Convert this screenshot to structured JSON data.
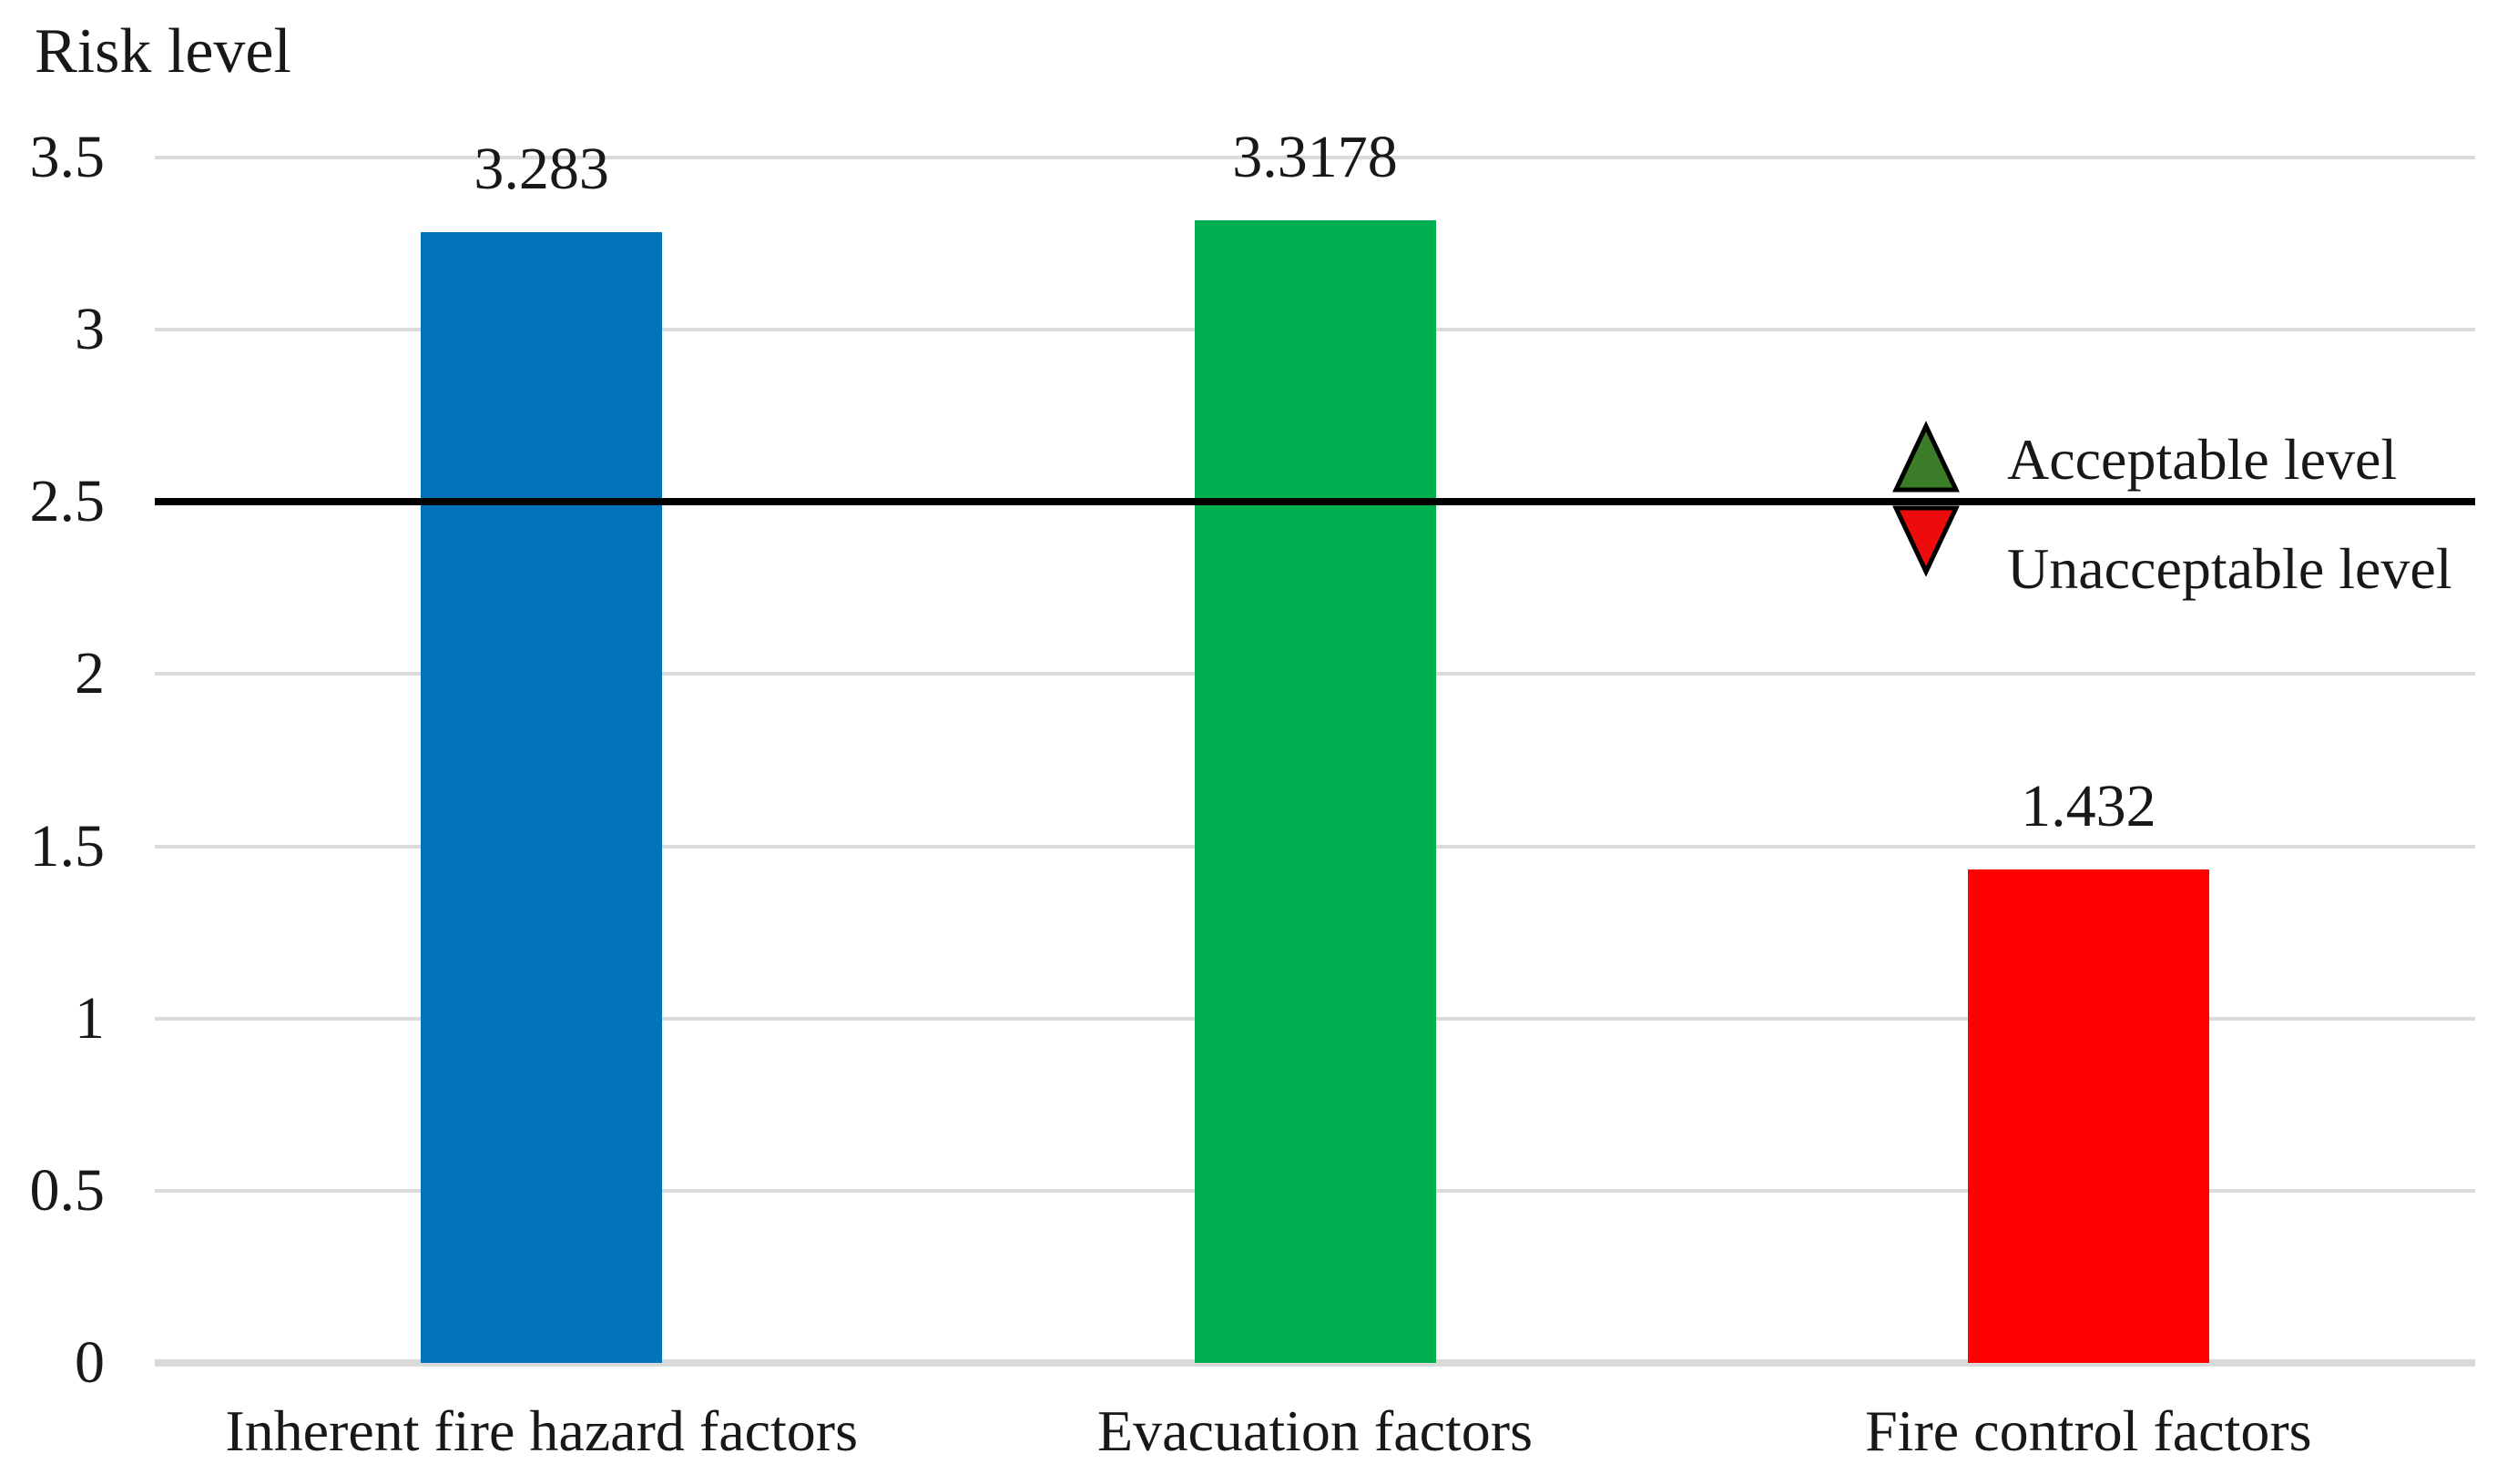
{
  "chart_data": {
    "type": "bar",
    "title": "Risk level",
    "title_position": "top-left",
    "categories": [
      "Inherent fire hazard factors",
      "Evacuation factors",
      "Fire control factors"
    ],
    "series": [
      {
        "name": "Risk level",
        "values": [
          3.283,
          3.3178,
          1.432
        ]
      }
    ],
    "value_labels": [
      "3.283",
      "3.3178",
      "1.432"
    ],
    "bar_colors": [
      "#0073BA",
      "#00AF50",
      "#FF0000"
    ],
    "xlabel": "",
    "ylabel": "Risk level",
    "ylim": [
      0,
      3.5
    ],
    "yticks": [
      0,
      0.5,
      1,
      1.5,
      2,
      2.5,
      3,
      3.5
    ],
    "ytick_labels": [
      "0",
      "0.5",
      "1",
      "1.5",
      "2",
      "2.5",
      "3",
      "3.5"
    ],
    "grid": true,
    "gridline_color": "#DBDBDB",
    "axis_line_color": "#D9D9D9",
    "background_color": "#FFFFFF",
    "text_color": "#181818",
    "threshold_line": {
      "value": 2.5,
      "color": "#000000",
      "acceptable_label": "Acceptable level",
      "unacceptable_label": "Unacceptable level",
      "acceptable_marker": "triangle-up",
      "unacceptable_marker": "triangle-down",
      "acceptable_marker_color": "#3B7D28",
      "unacceptable_marker_color": "#EE0B0B",
      "marker_outline_color": "#000000"
    },
    "legend_position": "right, astride threshold line"
  }
}
